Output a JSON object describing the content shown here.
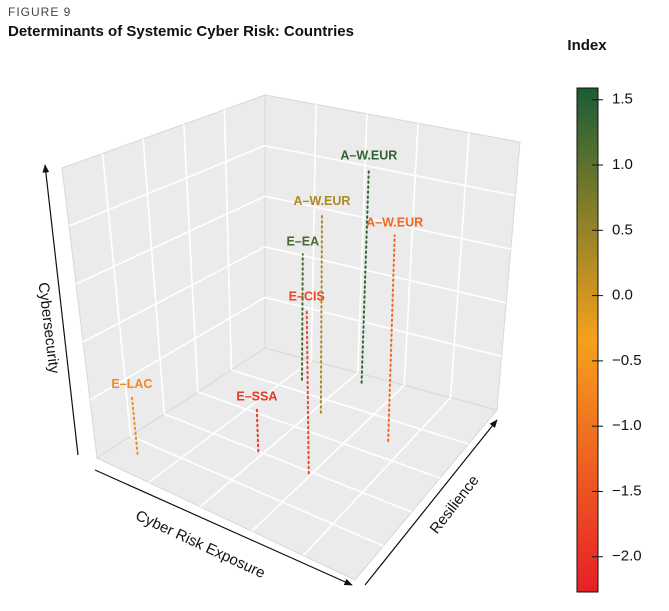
{
  "chart_data": {
    "type": "scatter3d",
    "figure_label": "FIGURE 9",
    "title": "Determinants of Systemic Cyber Risk: Countries",
    "x_label": "Cyber Risk Exposure",
    "y_label": "Resilience",
    "z_label": "Cybersecurity",
    "xlim": [
      0,
      1
    ],
    "ylim": [
      0,
      1
    ],
    "zlim": [
      0,
      1
    ],
    "points": [
      {
        "label": "E–LAC",
        "x": 0.08,
        "y": 0.12,
        "z": 0.2,
        "index": -0.7
      },
      {
        "label": "E–SSA",
        "x": 0.38,
        "y": 0.4,
        "z": 0.15,
        "index": -1.9
      },
      {
        "label": "E–CIS",
        "x": 0.59,
        "y": 0.39,
        "z": 0.58,
        "index": -1.7
      },
      {
        "label": "E–EA",
        "x": 0.25,
        "y": 0.87,
        "z": 0.48,
        "index": 1.2
      },
      {
        "label": "A–W.EUR",
        "x": 0.43,
        "y": 0.72,
        "z": 0.74,
        "index": 0.3
      },
      {
        "label": "A–W.EUR",
        "x": 0.45,
        "y": 0.95,
        "z": 0.82,
        "index": 1.4
      },
      {
        "label": "A–W.EUR",
        "x": 0.73,
        "y": 0.69,
        "z": 0.75,
        "index": -1.2
      }
    ],
    "colorbar_title": "Index",
    "clim": [
      -2.27,
      1.59
    ],
    "colors": [
      "#e61f26",
      "#f6a11c",
      "#1a5c36"
    ],
    "cticks": [
      {
        "value": 1.5,
        "label": "1.5"
      },
      {
        "value": 1.0,
        "label": "1.0"
      },
      {
        "value": 0.5,
        "label": "0.5"
      },
      {
        "value": 0.0,
        "label": "0.0"
      },
      {
        "value": -0.5,
        "label": "−0.5"
      },
      {
        "value": -1.0,
        "label": "−1.0"
      },
      {
        "value": -1.5,
        "label": "−1.5"
      },
      {
        "value": -2.0,
        "label": "−2.0"
      }
    ]
  }
}
